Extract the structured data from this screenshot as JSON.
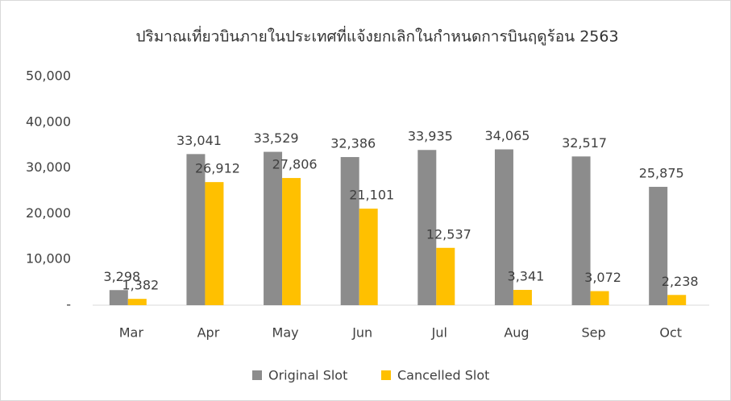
{
  "chart_data": {
    "type": "bar",
    "title": "ปริมาณเที่ยวบินภายในประเทศที่แจ้งยกเลิกในกำหนดการบินฤดูร้อน  2563",
    "categories": [
      "Mar",
      "Apr",
      "May",
      "Jun",
      "Jul",
      "Aug",
      "Sep",
      "Oct"
    ],
    "series": [
      {
        "name": "Original Slot",
        "color": "#8c8c8c",
        "values": [
          3298,
          33041,
          33529,
          32386,
          33935,
          34065,
          32517,
          25875
        ],
        "value_labels": [
          "3,298",
          "33,041",
          "33,529",
          "32,386",
          "33,935",
          "34,065",
          "32,517",
          "25,875"
        ]
      },
      {
        "name": "Cancelled Slot",
        "color": "#ffc000",
        "values": [
          1382,
          26912,
          27806,
          21101,
          12537,
          3341,
          3072,
          2238
        ],
        "value_labels": [
          "1,382",
          "26,912",
          "27,806",
          "21,101",
          "12,537",
          "3,341",
          "3,072",
          "2,238"
        ]
      }
    ],
    "ylim": [
      0,
      50000
    ],
    "yticks": [
      {
        "value": 0,
        "label": "-"
      },
      {
        "value": 10000,
        "label": "10,000"
      },
      {
        "value": 20000,
        "label": "20,000"
      },
      {
        "value": 30000,
        "label": "30,000"
      },
      {
        "value": 40000,
        "label": "40,000"
      },
      {
        "value": 50000,
        "label": "50,000"
      }
    ],
    "grid": false,
    "legend": "bottom"
  }
}
